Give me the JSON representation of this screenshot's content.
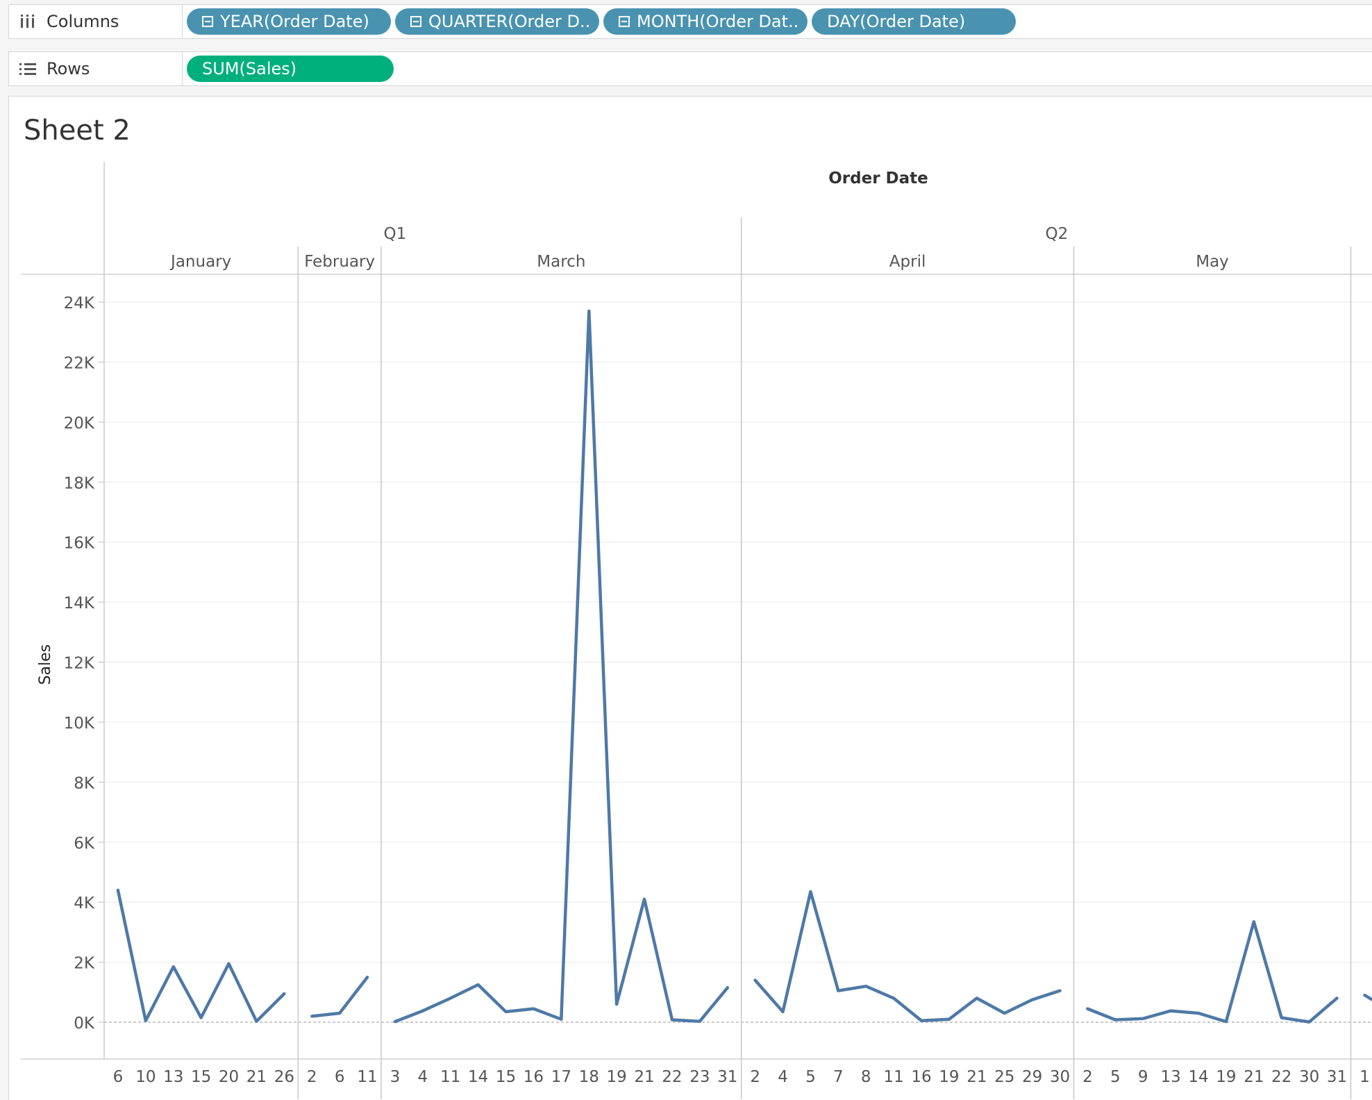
{
  "shelves": {
    "columns": {
      "label": "Columns",
      "pills": [
        {
          "text": "YEAR(Order Date)",
          "collapse": true
        },
        {
          "text": "QUARTER(Order D..",
          "collapse": true
        },
        {
          "text": "MONTH(Order Dat..",
          "collapse": true
        },
        {
          "text": "DAY(Order Date)",
          "collapse": false
        }
      ]
    },
    "rows": {
      "label": "Rows",
      "pills": [
        {
          "text": "SUM(Sales)"
        }
      ]
    }
  },
  "sheet": {
    "title": "Sheet 2"
  },
  "colors": {
    "line": "#4e79a7",
    "pill_dimension": "#4a93b0",
    "pill_measure": "#00b07c"
  },
  "chart_data": {
    "type": "line",
    "header": "Order Date",
    "ylabel": "Sales",
    "ylim": [
      0,
      24000
    ],
    "y_ticks": [
      "0K",
      "2K",
      "4K",
      "6K",
      "8K",
      "10K",
      "12K",
      "14K",
      "16K",
      "18K",
      "20K",
      "22K",
      "24K"
    ],
    "grid": true,
    "quarters": [
      {
        "label": "Q1",
        "months": [
          "January",
          "February",
          "March"
        ]
      },
      {
        "label": "Q2",
        "months": [
          "April",
          "May",
          ""
        ]
      }
    ],
    "months": [
      {
        "name": "January",
        "days": [
          6,
          10,
          13,
          15,
          20,
          21,
          26
        ],
        "values": [
          4400,
          50,
          1850,
          150,
          1950,
          30,
          950
        ]
      },
      {
        "name": "February",
        "days": [
          2,
          6,
          11
        ],
        "values": [
          200,
          300,
          1500
        ]
      },
      {
        "name": "March",
        "days": [
          3,
          4,
          11,
          14,
          15,
          16,
          17,
          18,
          19,
          21,
          22,
          23,
          31
        ],
        "values": [
          20,
          380,
          800,
          1250,
          350,
          450,
          100,
          23700,
          600,
          4100,
          80,
          30,
          1150
        ]
      },
      {
        "name": "April",
        "days": [
          2,
          4,
          5,
          7,
          8,
          11,
          16,
          19,
          21,
          25,
          29,
          30
        ],
        "values": [
          1400,
          350,
          4350,
          1050,
          1200,
          800,
          50,
          100,
          800,
          300,
          750,
          1050
        ]
      },
      {
        "name": "May",
        "days": [
          2,
          5,
          9,
          13,
          14,
          19,
          21,
          22,
          30,
          31
        ],
        "values": [
          450,
          80,
          120,
          380,
          300,
          20,
          3350,
          150,
          10,
          800
        ]
      },
      {
        "name": "",
        "days": [
          1
        ],
        "values": [
          900
        ]
      }
    ]
  }
}
